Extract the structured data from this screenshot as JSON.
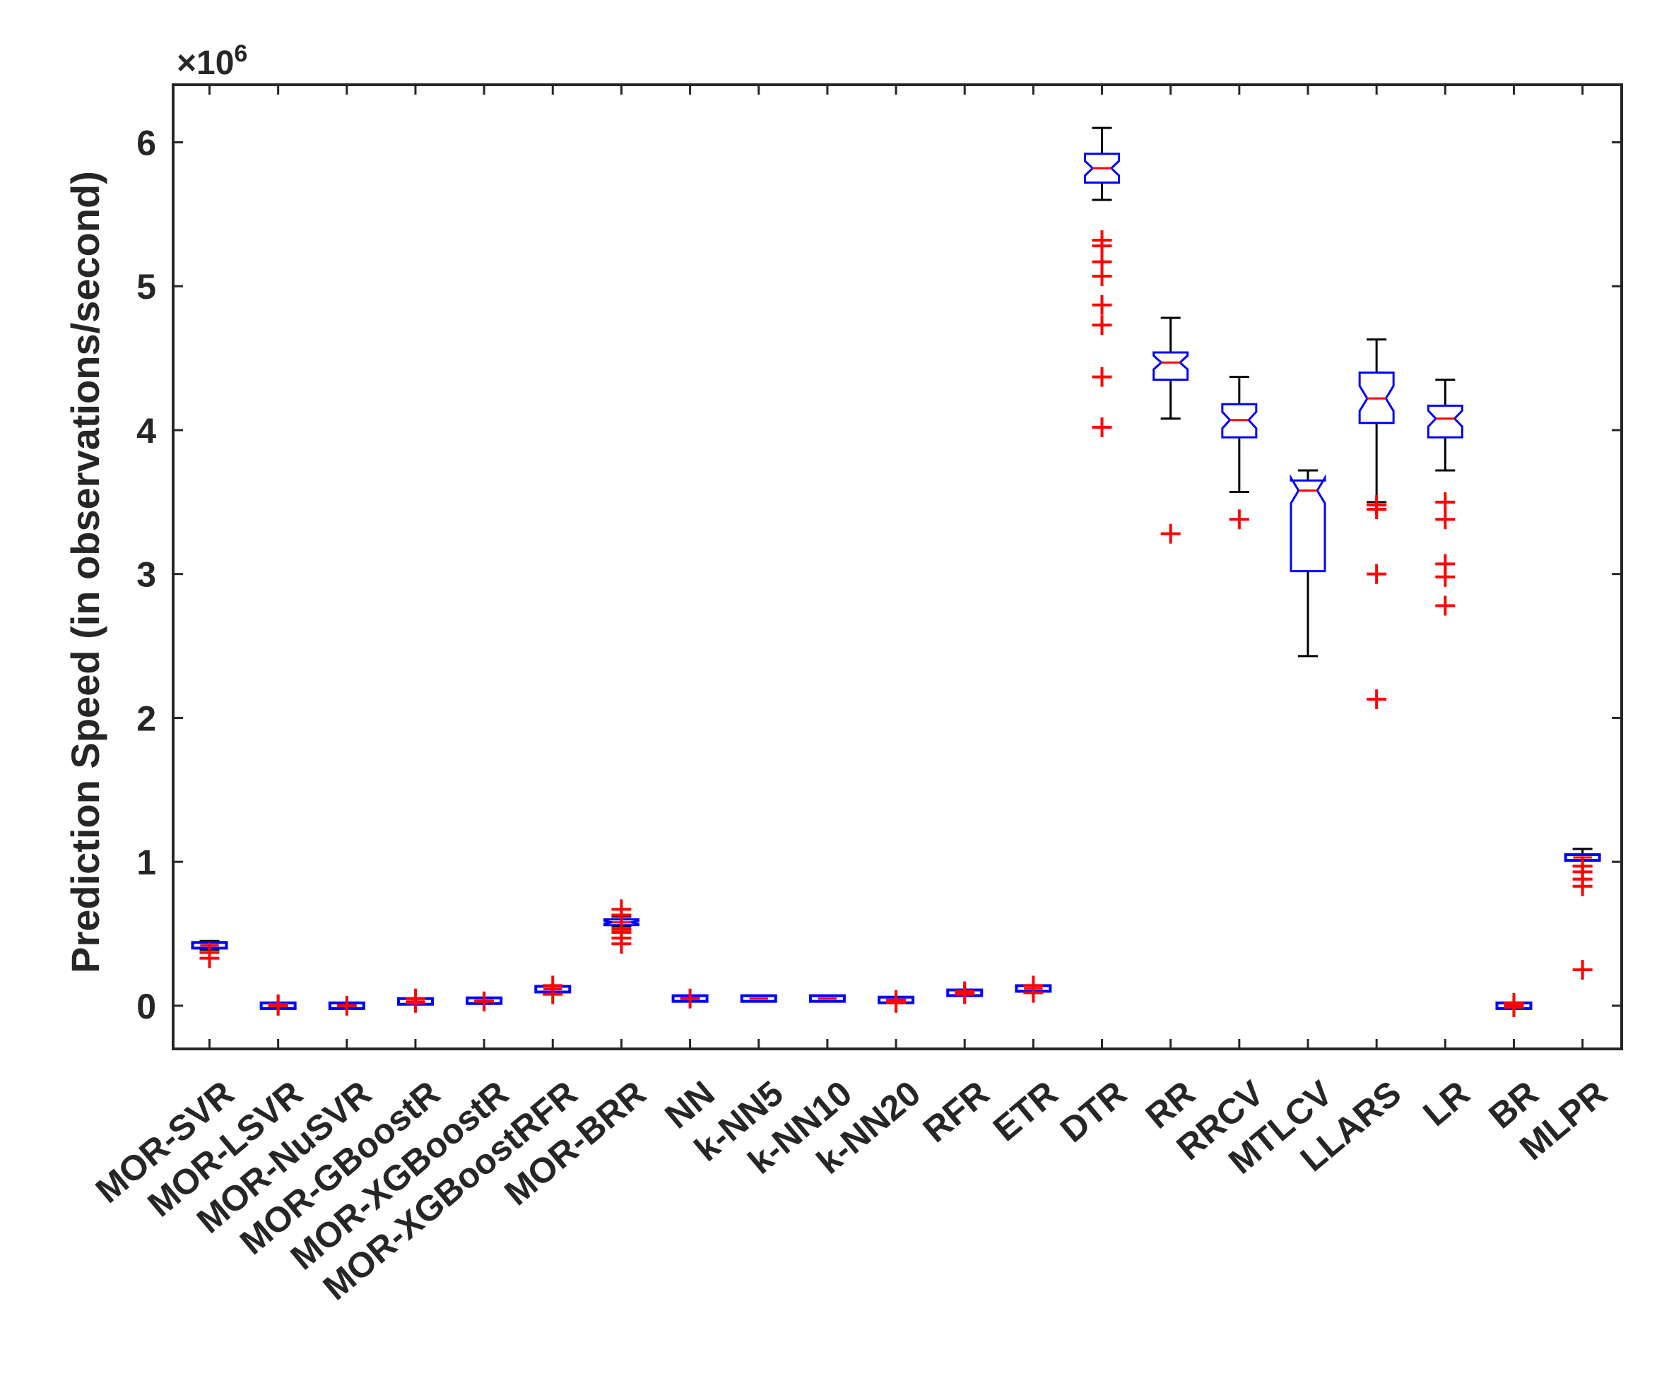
{
  "chart_data": {
    "type": "boxplot",
    "title": "",
    "xlabel": "",
    "ylabel": "Prediction Speed (in observations/second)",
    "y_exponent_label": "×10",
    "y_exponent_power": "6",
    "ylim": [
      -0.3,
      6.4
    ],
    "yticks": [
      0,
      1,
      2,
      3,
      4,
      5,
      6
    ],
    "colors": {
      "box": "#0000ff",
      "median": "#ff0000",
      "whisker": "#000000",
      "outlier": "#ff0000",
      "axis": "#262626"
    },
    "categories": [
      "MOR-SVR",
      "MOR-LSVR",
      "MOR-NuSVR",
      "MOR-GBoostR",
      "MOR-XGBoostR",
      "MOR-XGBoostRFR",
      "MOR-BRR",
      "NN",
      "k-NN5",
      "k-NN10",
      "k-NN20",
      "RFR",
      "ETR",
      "DTR",
      "RR",
      "RRCV",
      "MTLCV",
      "LLARS",
      "LR",
      "BR",
      "MLPR"
    ],
    "boxes": [
      {
        "label": "MOR-SVR",
        "q1": 0.4,
        "median": 0.42,
        "q3": 0.43,
        "whisker_low": 0.39,
        "whisker_high": 0.45,
        "outliers": [
          0.33,
          0.37
        ]
      },
      {
        "label": "MOR-LSVR",
        "q1": 0.0,
        "median": 0.0,
        "q3": 0.0,
        "whisker_low": 0.0,
        "whisker_high": 0.0,
        "outliers": [
          0.0,
          0.01
        ]
      },
      {
        "label": "MOR-NuSVR",
        "q1": 0.0,
        "median": 0.0,
        "q3": 0.0,
        "whisker_low": 0.0,
        "whisker_high": 0.0,
        "outliers": [
          0.0
        ]
      },
      {
        "label": "MOR-GBoostR",
        "q1": 0.03,
        "median": 0.03,
        "q3": 0.04,
        "whisker_low": 0.03,
        "whisker_high": 0.04,
        "outliers": [
          0.02,
          0.05
        ]
      },
      {
        "label": "MOR-XGBoostR",
        "q1": 0.03,
        "median": 0.035,
        "q3": 0.04,
        "whisker_low": 0.03,
        "whisker_high": 0.04,
        "outliers": [
          0.03
        ]
      },
      {
        "label": "MOR-XGBoostRFR",
        "q1": 0.11,
        "median": 0.115,
        "q3": 0.12,
        "whisker_low": 0.1,
        "whisker_high": 0.13,
        "outliers": [
          0.08,
          0.14
        ]
      },
      {
        "label": "MOR-BRR",
        "q1": 0.56,
        "median": 0.58,
        "q3": 0.6,
        "whisker_low": 0.55,
        "whisker_high": 0.62,
        "outliers": [
          0.43,
          0.47,
          0.51,
          0.53,
          0.63,
          0.67
        ]
      },
      {
        "label": "NN",
        "q1": 0.05,
        "median": 0.05,
        "q3": 0.05,
        "whisker_low": 0.05,
        "whisker_high": 0.05,
        "outliers": [
          0.05
        ]
      },
      {
        "label": "k-NN5",
        "q1": 0.05,
        "median": 0.05,
        "q3": 0.05,
        "whisker_low": 0.05,
        "whisker_high": 0.05,
        "outliers": []
      },
      {
        "label": "k-NN10",
        "q1": 0.05,
        "median": 0.05,
        "q3": 0.05,
        "whisker_low": 0.05,
        "whisker_high": 0.05,
        "outliers": []
      },
      {
        "label": "k-NN20",
        "q1": 0.04,
        "median": 0.04,
        "q3": 0.04,
        "whisker_low": 0.04,
        "whisker_high": 0.04,
        "outliers": [
          0.02,
          0.04
        ]
      },
      {
        "label": "RFR",
        "q1": 0.09,
        "median": 0.09,
        "q3": 0.09,
        "whisker_low": 0.09,
        "whisker_high": 0.09,
        "outliers": [
          0.08,
          0.1
        ]
      },
      {
        "label": "ETR",
        "q1": 0.12,
        "median": 0.12,
        "q3": 0.12,
        "whisker_low": 0.12,
        "whisker_high": 0.12,
        "outliers": [
          0.09,
          0.14
        ]
      },
      {
        "label": "DTR",
        "q1": 5.72,
        "median": 5.82,
        "q3": 5.92,
        "whisker_low": 5.6,
        "whisker_high": 6.1,
        "outliers": [
          4.02,
          4.37,
          4.73,
          4.87,
          5.07,
          5.17,
          5.28,
          5.32
        ]
      },
      {
        "label": "RR",
        "q1": 4.35,
        "median": 4.47,
        "q3": 4.54,
        "whisker_low": 4.08,
        "whisker_high": 4.78,
        "outliers": [
          3.28
        ]
      },
      {
        "label": "RRCV",
        "q1": 3.95,
        "median": 4.07,
        "q3": 4.18,
        "whisker_low": 3.57,
        "whisker_high": 4.37,
        "outliers": [
          3.38
        ]
      },
      {
        "label": "MTLCV",
        "q1": 3.02,
        "median": 3.58,
        "q3": 3.65,
        "whisker_low": 2.43,
        "whisker_high": 3.72,
        "outliers": []
      },
      {
        "label": "LLARS",
        "q1": 4.05,
        "median": 4.22,
        "q3": 4.4,
        "whisker_low": 3.5,
        "whisker_high": 4.63,
        "outliers": [
          2.13,
          3.0,
          3.45,
          3.48
        ]
      },
      {
        "label": "LR",
        "q1": 3.95,
        "median": 4.08,
        "q3": 4.17,
        "whisker_low": 3.72,
        "whisker_high": 4.35,
        "outliers": [
          2.78,
          2.98,
          3.07,
          3.38,
          3.5
        ]
      },
      {
        "label": "BR",
        "q1": 0.0,
        "median": 0.0,
        "q3": 0.0,
        "whisker_low": 0.0,
        "whisker_high": 0.0,
        "outliers": [
          -0.01,
          0.0,
          0.02
        ]
      },
      {
        "label": "MLPR",
        "q1": 1.02,
        "median": 1.03,
        "q3": 1.05,
        "whisker_low": 0.97,
        "whisker_high": 1.09,
        "outliers": [
          0.25,
          0.83,
          0.88,
          0.93,
          0.97
        ]
      }
    ]
  }
}
